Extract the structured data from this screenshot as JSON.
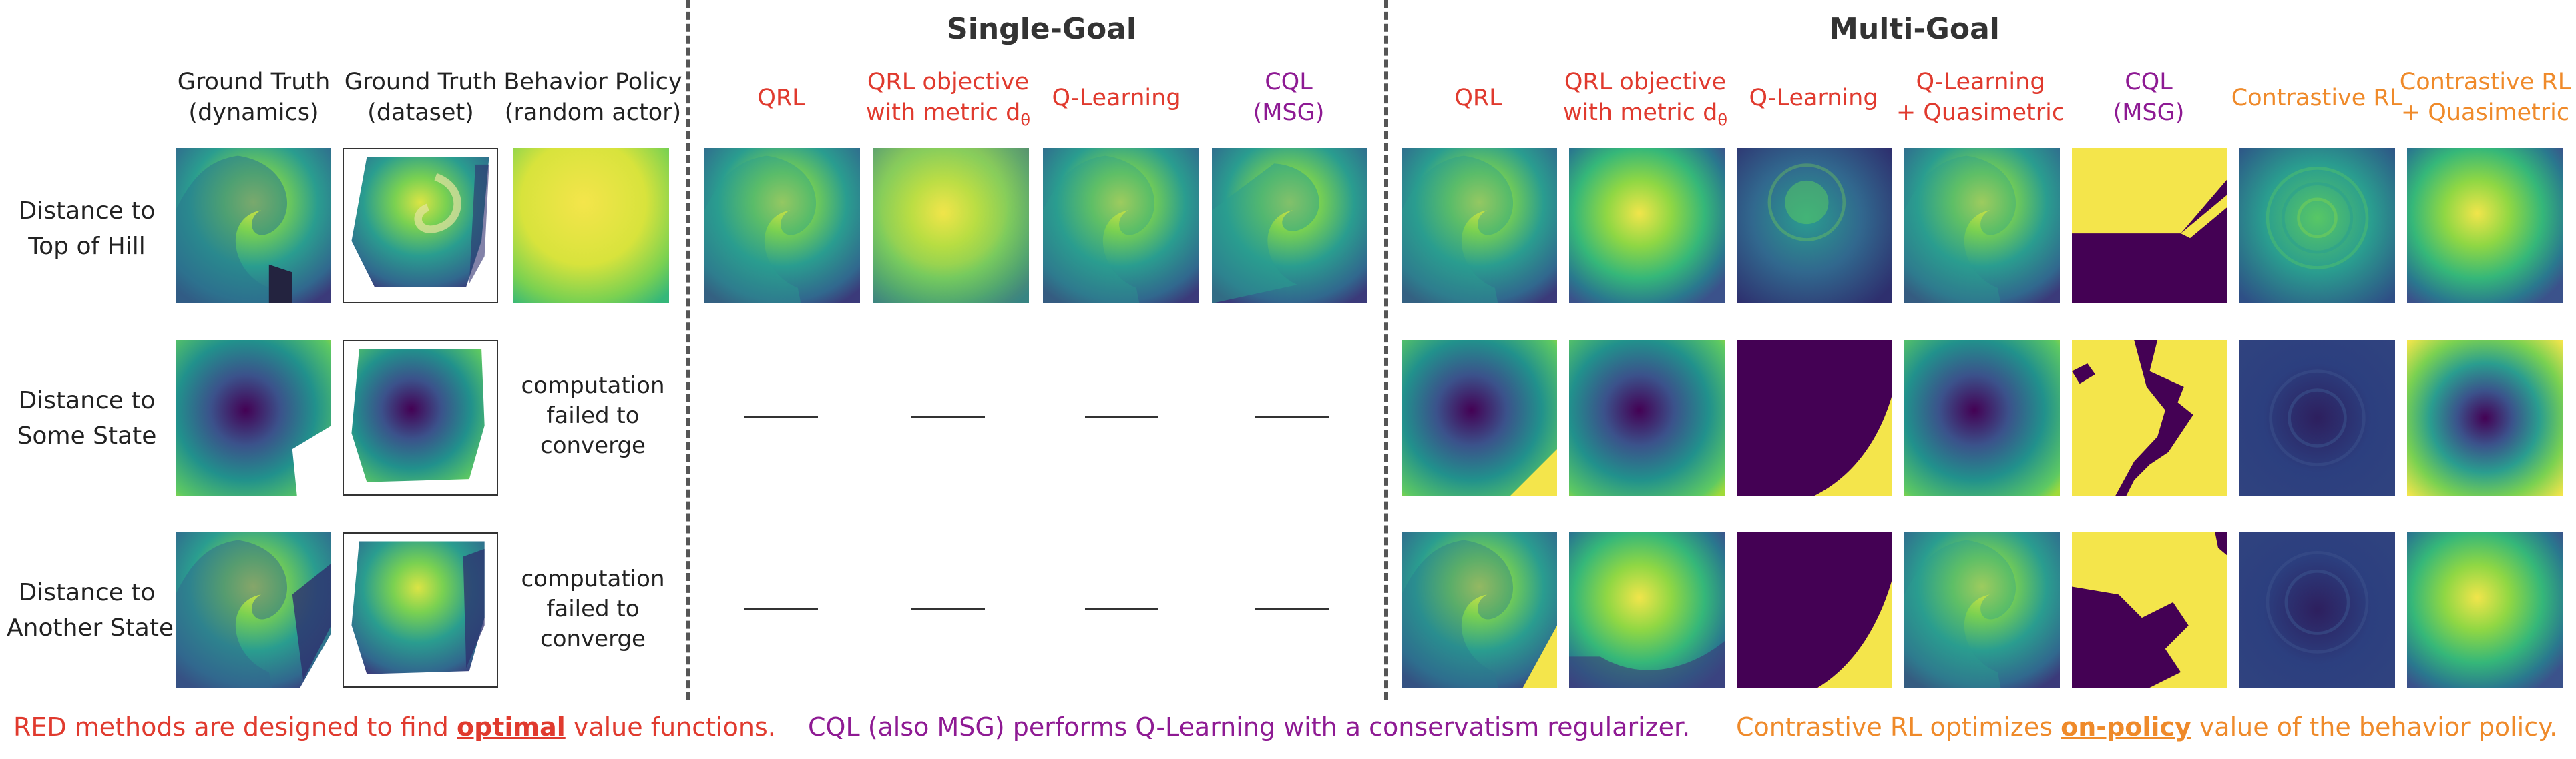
{
  "sections": {
    "single_goal": "Single-Goal",
    "multi_goal": "Multi-Goal"
  },
  "columns": {
    "gt_dynamics": [
      "Ground Truth",
      "(dynamics)"
    ],
    "gt_dataset": [
      "Ground Truth",
      "(dataset)"
    ],
    "behavior": [
      "Behavior Policy",
      "(random actor)"
    ],
    "qrl": "QRL",
    "qrl_metric": [
      "QRL objective",
      "with metric d",
      "θ"
    ],
    "q_learning": "Q-Learning",
    "q_learning_qm": [
      "Q-Learning",
      "+ Quasimetric"
    ],
    "cql": [
      "CQL",
      "(MSG)"
    ],
    "contrastive": "Contrastive RL",
    "contrastive_qm": [
      "Contrastive RL",
      "+ Quasimetric"
    ]
  },
  "rows": {
    "top_of_hill": [
      "Distance to",
      "Top of Hill"
    ],
    "some_state": [
      "Distance to",
      "Some State"
    ],
    "another_state": [
      "Distance to",
      "Another State"
    ]
  },
  "failed_text": [
    "computation",
    "failed to",
    "converge"
  ],
  "footer": {
    "red_pre": "RED methods are designed to find ",
    "red_em": "optimal",
    "red_post": " value functions.",
    "purple": "CQL (also MSG) performs Q-Learning with a conservatism regularizer.",
    "orange_pre": "Contrastive RL optimizes ",
    "orange_em": "on-policy",
    "orange_post": " value of the behavior policy."
  },
  "colors": {
    "red": "#e03a2e",
    "purple": "#8e1a93",
    "orange": "#ef8a2a",
    "viridis_dark": "#440154",
    "viridis_yellow": "#f4e54b"
  }
}
